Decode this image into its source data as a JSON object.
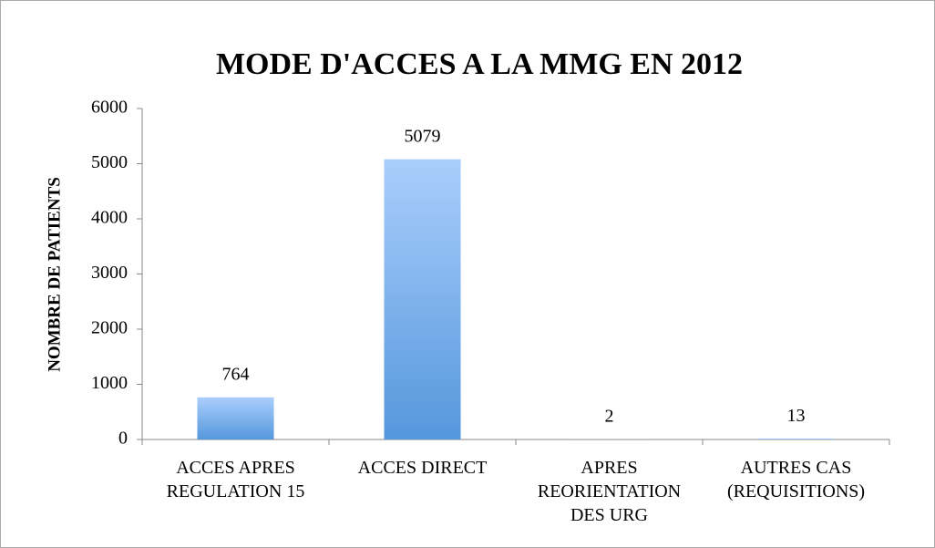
{
  "chart_data": {
    "type": "bar",
    "title": "MODE D'ACCES A LA MMG EN 2012",
    "y_label": "NOMBRE DE PATIENTS",
    "categories": [
      "ACCES APRES REGULATION 15",
      "ACCES DIRECT",
      "APRES REORIENTATION DES URG",
      "AUTRES CAS (REQUISITIONS)"
    ],
    "values": [
      764,
      5079,
      2,
      13
    ],
    "color": "#6fa8e8",
    "ylim": [
      0,
      6000
    ],
    "yticks": [
      0,
      1000,
      2000,
      3000,
      4000,
      5000,
      6000
    ],
    "grid": false
  }
}
